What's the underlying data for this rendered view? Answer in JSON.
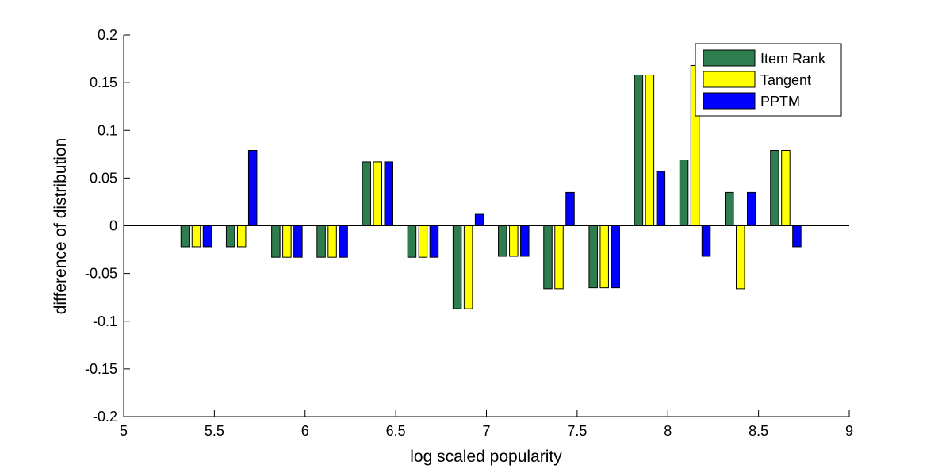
{
  "chart_data": {
    "type": "bar",
    "title": "",
    "xlabel": "log scaled popularity",
    "ylabel": "difference of distribution",
    "xlim": [
      5,
      9
    ],
    "ylim": [
      -0.2,
      0.2
    ],
    "xticks": [
      5,
      5.5,
      6,
      6.5,
      7,
      7.5,
      8,
      8.5,
      9
    ],
    "xtick_labels": [
      "5",
      "5.5",
      "6",
      "6.5",
      "7",
      "7.5",
      "8",
      "8.5",
      "9"
    ],
    "yticks": [
      -0.2,
      -0.15,
      -0.1,
      -0.05,
      0,
      0.05,
      0.1,
      0.15,
      0.2
    ],
    "ytick_labels": [
      "-0.2",
      "-0.15",
      "-0.1",
      "-0.05",
      "0",
      "0.05",
      "0.1",
      "0.15",
      "0.2"
    ],
    "grid": false,
    "legend_position": "top-right",
    "x": [
      5.4,
      5.65,
      5.9,
      6.15,
      6.4,
      6.65,
      6.9,
      7.15,
      7.4,
      7.65,
      7.9,
      8.15,
      8.4,
      8.65
    ],
    "series": [
      {
        "name": "Item Rank",
        "color": "#2e7d4f",
        "values": [
          -0.022,
          -0.022,
          -0.033,
          -0.033,
          0.067,
          -0.033,
          -0.087,
          -0.032,
          -0.066,
          -0.065,
          0.158,
          0.069,
          0.035,
          0.079
        ]
      },
      {
        "name": "Tangent",
        "color": "#ffff00",
        "values": [
          -0.022,
          -0.022,
          -0.033,
          -0.033,
          0.067,
          -0.033,
          -0.087,
          -0.032,
          -0.066,
          -0.065,
          0.158,
          0.168,
          -0.066,
          0.079
        ]
      },
      {
        "name": "PPTM",
        "color": "#0000ff",
        "values": [
          -0.022,
          0.079,
          -0.033,
          -0.033,
          0.067,
          -0.033,
          0.012,
          -0.032,
          0.035,
          -0.065,
          0.057,
          -0.032,
          0.035,
          -0.022
        ]
      }
    ]
  }
}
